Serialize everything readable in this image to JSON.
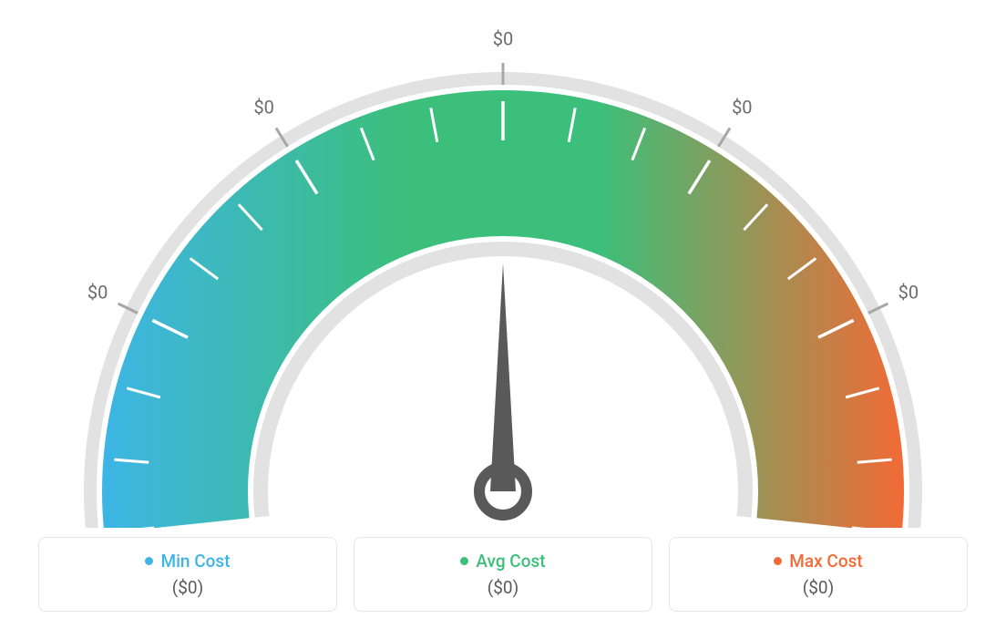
{
  "gauge": {
    "type": "gauge",
    "colors": {
      "segment_start": "#3db5e6",
      "segment_mid": "#3cbf7a",
      "segment_end": "#f26a35",
      "outer_ring": "#e2e2e2",
      "inner_ring": "#e2e2e2",
      "tick_major": "#a7a7a7",
      "tick_minor": "#ffffff",
      "needle": "#595959",
      "label_text": "#6b6b6b",
      "background": "#ffffff"
    },
    "tick_labels": [
      "$0",
      "$0",
      "$0",
      "$0",
      "$0",
      "$0",
      "$0"
    ],
    "angle_range_deg": [
      186,
      -6
    ],
    "needle_angle_deg": 90,
    "outer_radius": 440,
    "arc_thickness": 160,
    "label_fontsize": 20,
    "tick_count_minor_between": 2
  },
  "legend": {
    "items": [
      {
        "dot_color": "#3db5e6",
        "label_color": "#3db5e6",
        "label": "Min Cost",
        "value": "($0)"
      },
      {
        "dot_color": "#3cbf7a",
        "label_color": "#3cbf7a",
        "label": "Avg Cost",
        "value": "($0)"
      },
      {
        "dot_color": "#f26a35",
        "label_color": "#f26a35",
        "label": "Max Cost",
        "value": "($0)"
      }
    ],
    "card_border_color": "#e5e5e5",
    "card_radius": 8,
    "label_fontsize": 19,
    "value_fontsize": 19,
    "value_color": "#5a5a5a"
  }
}
